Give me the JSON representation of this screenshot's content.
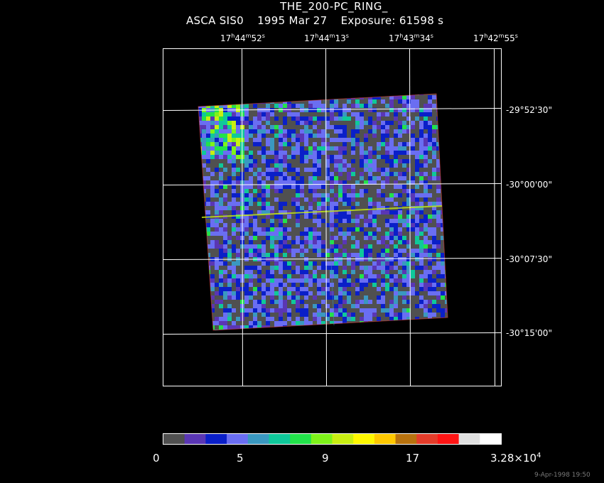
{
  "header": {
    "title": "THE_200-PC_RING_",
    "instrument": "ASCA SIS0",
    "date": "1995 Mar 27",
    "exposure": "Exposure: 61598 s"
  },
  "ra_ticks": [
    {
      "h": "17",
      "m": "44",
      "s": "52"
    },
    {
      "h": "17",
      "m": "44",
      "s": "13"
    },
    {
      "h": "17",
      "m": "43",
      "s": "34"
    },
    {
      "h": "17",
      "m": "42",
      "s": "55"
    }
  ],
  "dec_ticks": [
    "-29°52'30\"",
    "-30°00'00\"",
    "-30°07'30\"",
    "-30°15'00\""
  ],
  "colorbar": {
    "colors": [
      "#505050",
      "#5a36b4",
      "#0a1fc8",
      "#6a6ef2",
      "#3a98c0",
      "#0fc89a",
      "#22e24a",
      "#7ef21a",
      "#c8ee12",
      "#fff800",
      "#ffc800",
      "#b8720e",
      "#e43c2a",
      "#ff1414",
      "#e0e0e0",
      "#ffffff"
    ],
    "labels": {
      "min": "0",
      "t1": "5",
      "t2": "9",
      "t3": "17",
      "max_mantissa": "3.28×10",
      "max_exp": "4"
    }
  },
  "footer": {
    "timestamp": "9-Apr-1998 19:50"
  }
}
